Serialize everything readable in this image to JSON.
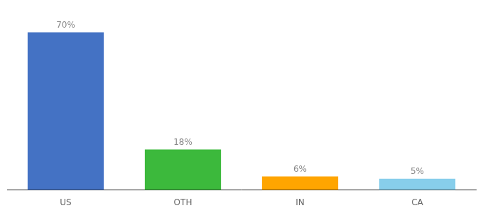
{
  "chart_data": {
    "type": "bar",
    "categories": [
      "US",
      "OTH",
      "IN",
      "CA"
    ],
    "values": [
      70,
      18,
      6,
      5
    ],
    "value_labels": [
      "70%",
      "18%",
      "6%",
      "5%"
    ],
    "colors": [
      "#4472C4",
      "#3CB93C",
      "#FFA500",
      "#87CEEB"
    ],
    "ylim": [
      0,
      78
    ],
    "data_labels": true,
    "tick_labels": "x",
    "grid": false
  }
}
